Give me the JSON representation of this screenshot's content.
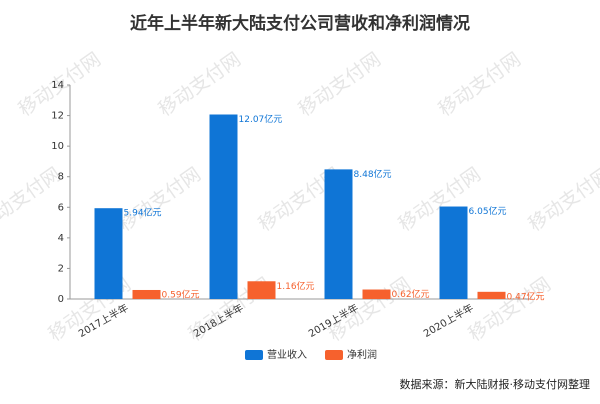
{
  "chart_data": {
    "type": "bar",
    "title": "近年上半年新大陆支付公司营收和净利润情况",
    "categories": [
      "2017上半年",
      "2018上半年",
      "2019上半年",
      "2020上半年"
    ],
    "series": [
      {
        "name": "营业收入",
        "color": "#0f75d6",
        "values": [
          5.94,
          12.07,
          8.48,
          6.05
        ],
        "value_labels": [
          "5.94亿元",
          "12.07亿元",
          "8.48亿元",
          "6.05亿元"
        ]
      },
      {
        "name": "净利润",
        "color": "#f6612d",
        "values": [
          0.59,
          1.16,
          0.62,
          0.47
        ],
        "value_labels": [
          "0.59亿元",
          "1.16亿元",
          "0.62亿元",
          "0.47亿元"
        ]
      }
    ],
    "ylim": [
      0,
      14
    ],
    "yticks": [
      0,
      2,
      4,
      6,
      8,
      10,
      12,
      14
    ],
    "legend": "bottom",
    "source": "数据来源：新大陆财报·移动支付网整理",
    "watermark": "移动支付网"
  }
}
